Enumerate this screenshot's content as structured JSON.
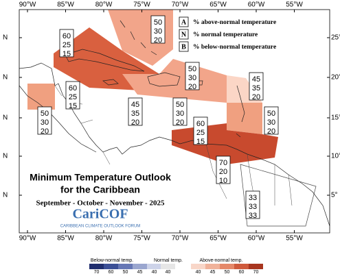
{
  "map": {
    "lon_labels": [
      "90°W",
      "85°W",
      "80°W",
      "75°W",
      "70°W",
      "65°W",
      "60°W",
      "55°W"
    ],
    "lat_labels": [
      "25°",
      "20°",
      "15°",
      "10°",
      "5°"
    ],
    "lat_suffix": "N",
    "legend": [
      {
        "key": "A",
        "text": "% above-normal temperature"
      },
      {
        "key": "N",
        "text": "% normal temperature"
      },
      {
        "key": "B",
        "text": "% below-normal temperature"
      }
    ],
    "title": {
      "line1": "Minimum Temperature Outlook",
      "line2": "for the Caribbean",
      "season": "September - October - November - 2025"
    },
    "logo": {
      "name": "CariCOF",
      "tagline": "CARIBBEAN CLIMATE OUTLOOK FORUM"
    },
    "regions": [
      {
        "above": 50,
        "normal": 30,
        "below": 20
      },
      {
        "above": 60,
        "normal": 25,
        "below": 15
      },
      {
        "above": 60,
        "normal": 25,
        "below": 15
      },
      {
        "above": 50,
        "normal": 30,
        "below": 20
      },
      {
        "above": 45,
        "normal": 35,
        "below": 20
      },
      {
        "above": 45,
        "normal": 35,
        "below": 20
      },
      {
        "above": 50,
        "normal": 30,
        "below": 20
      },
      {
        "above": 50,
        "normal": 30,
        "below": 20
      },
      {
        "above": 50,
        "normal": 30,
        "below": 20
      },
      {
        "above": 60,
        "normal": 25,
        "below": 15
      },
      {
        "above": 70,
        "normal": 20,
        "below": 10
      },
      {
        "above": 33,
        "normal": 33,
        "below": 33
      }
    ],
    "colorbar": {
      "below_label": "Below-normal temp.",
      "normal_label": "Normal temp.",
      "above_label": "Above-normal temp.",
      "below_ticks": [
        "70",
        "60",
        "50",
        "45",
        "40"
      ],
      "normal_ticks": [
        "40"
      ],
      "above_ticks": [
        "40",
        "45",
        "50",
        "60",
        "70"
      ]
    }
  }
}
